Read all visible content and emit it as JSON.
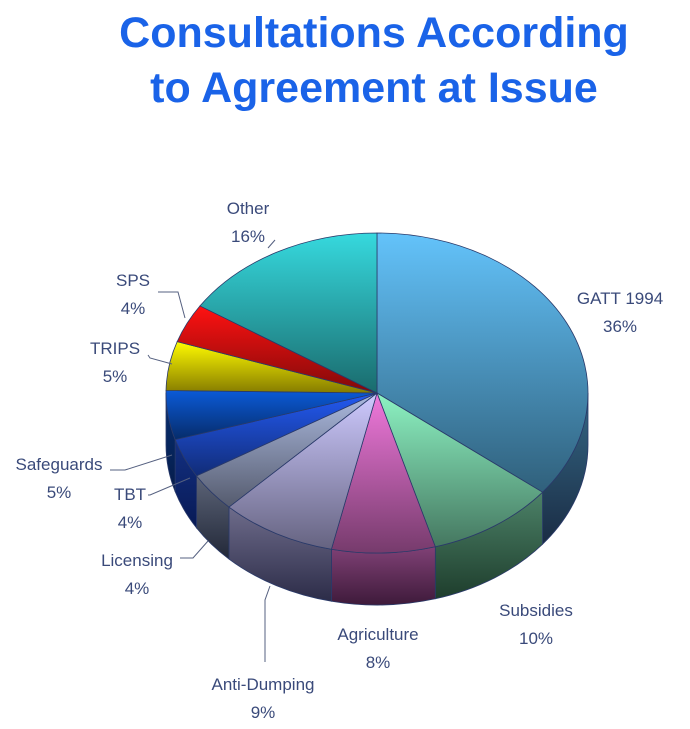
{
  "title_line1": "Consultations According",
  "title_line2": "to Agreement at Issue",
  "chart_data": {
    "type": "pie",
    "title": "Consultations According to Agreement at Issue",
    "slices": [
      {
        "label": "GATT 1994",
        "value": 36,
        "value_text": "36%",
        "top_color": "#58aee0",
        "side_color": "#1a2c44"
      },
      {
        "label": "Subsidies",
        "value": 10,
        "value_text": "10%",
        "top_color": "#7ed9ae",
        "side_color": "#1e3d2c"
      },
      {
        "label": "Agriculture",
        "value": 8,
        "value_text": "8%",
        "top_color": "#d66cc4",
        "side_color": "#3e1a3a"
      },
      {
        "label": "Anti-Dumping",
        "value": 9,
        "value_text": "9%",
        "top_color": "#b8b4e8",
        "side_color": "#2c2c48"
      },
      {
        "label": "Licensing",
        "value": 4,
        "value_text": "4%",
        "top_color": "#9aa6c8",
        "side_color": "#222838"
      },
      {
        "label": "TBT",
        "value": 4,
        "value_text": "4%",
        "top_color": "#1f50d8",
        "side_color": "#081a55"
      },
      {
        "label": "Safeguards",
        "value": 5,
        "value_text": "5%",
        "top_color": "#0a50c0",
        "side_color": "#061c4a"
      },
      {
        "label": "TRIPS",
        "value": 5,
        "value_text": "5%",
        "top_color": "#f2e000",
        "side_color": "#6a5a00"
      },
      {
        "label": "SPS",
        "value": 4,
        "value_text": "4%",
        "top_color": "#e81010",
        "side_color": "#600000"
      },
      {
        "label": "Other",
        "value": 16,
        "value_text": "16%",
        "top_color": "#30c2c6",
        "side_color": "#0c3c3e"
      }
    ],
    "legend": "none"
  }
}
